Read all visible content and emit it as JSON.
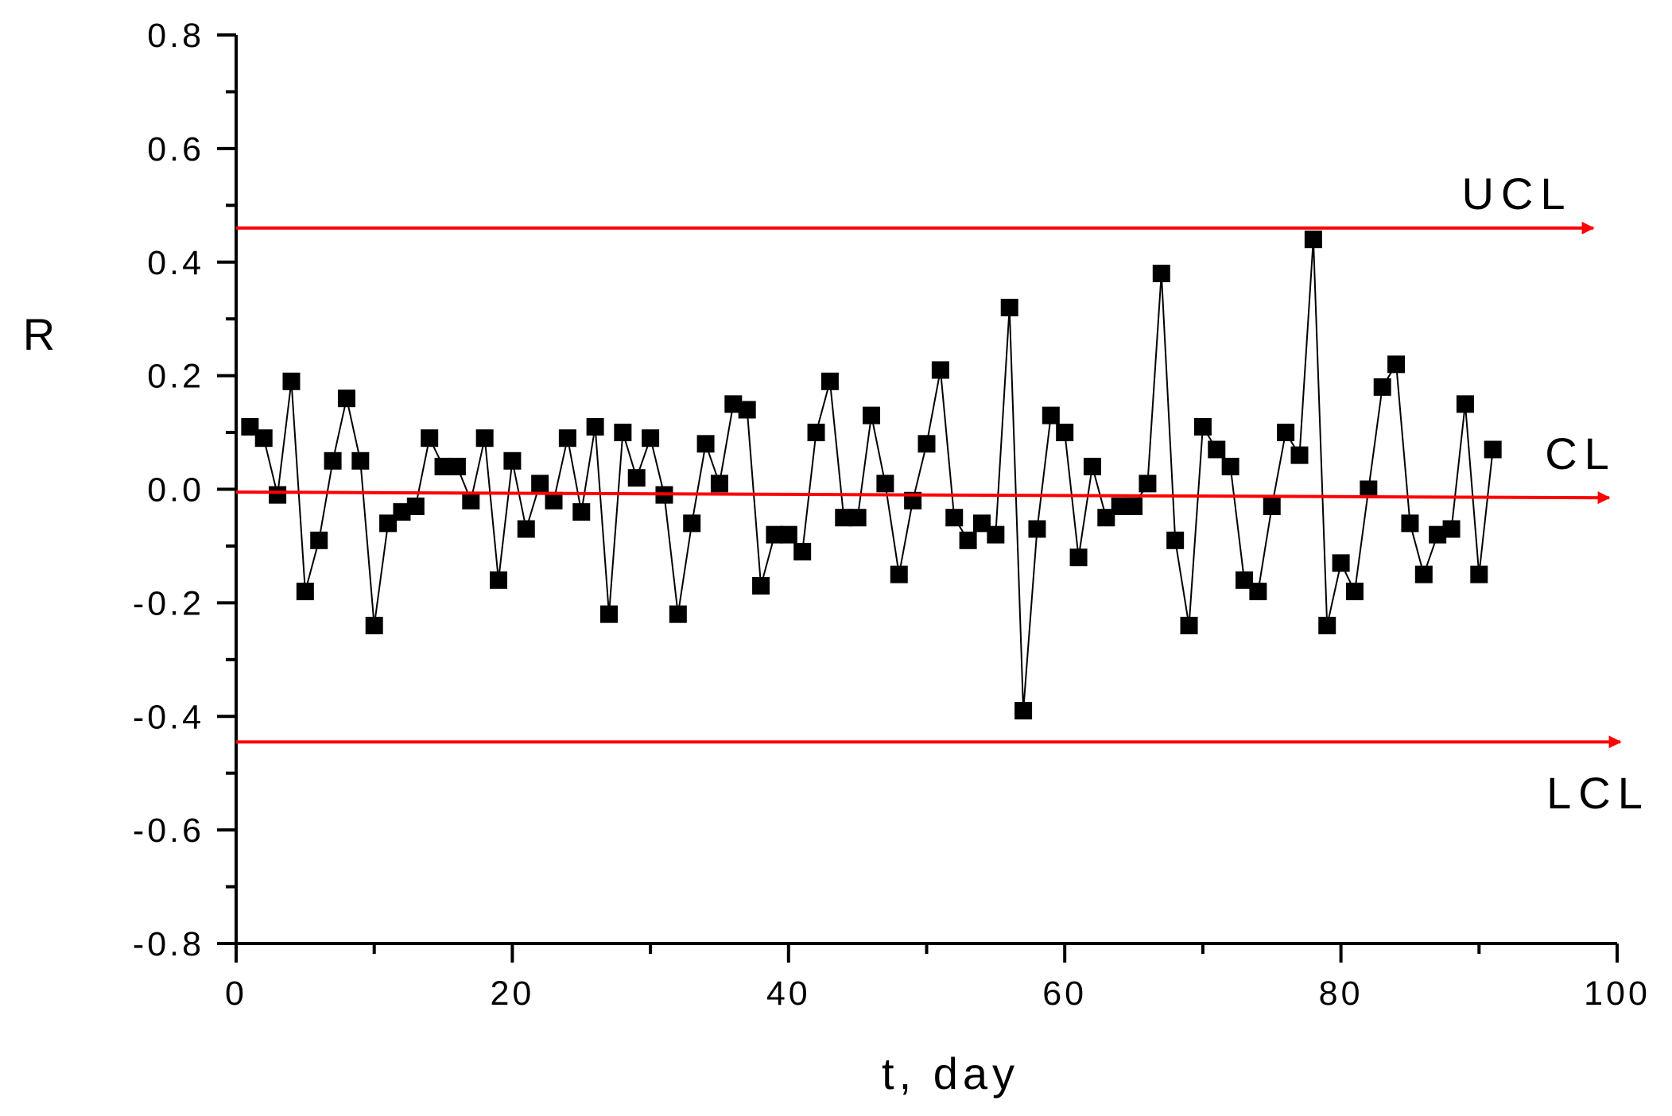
{
  "chart_data": {
    "type": "line",
    "xlabel": "t, day",
    "ylabel": "R",
    "xlim": [
      0,
      100
    ],
    "ylim": [
      -0.8,
      0.8
    ],
    "x_ticks": [
      "0",
      "20",
      "40",
      "60",
      "80",
      "100"
    ],
    "y_ticks": [
      "0.8",
      "0.6",
      "0.4",
      "0.2",
      "0.0",
      "-0.2",
      "-0.4",
      "-0.6",
      "-0.8"
    ],
    "grid": false,
    "series": [
      {
        "marker": "square",
        "color": "#000000",
        "x": [
          1,
          2,
          3,
          4,
          5,
          6,
          7,
          8,
          9,
          10,
          11,
          12,
          13,
          14,
          15,
          16,
          17,
          18,
          19,
          20,
          21,
          22,
          23,
          24,
          25,
          26,
          27,
          28,
          29,
          30,
          31,
          32,
          33,
          34,
          35,
          36,
          37,
          38,
          39,
          40,
          41,
          42,
          43,
          44,
          45,
          46,
          47,
          48,
          49,
          50,
          51,
          52,
          53,
          54,
          55,
          56,
          57,
          58,
          59,
          60,
          61,
          62,
          63,
          64,
          65,
          66,
          67,
          68,
          69,
          70,
          71,
          72,
          73,
          74,
          75,
          76,
          77,
          78,
          79,
          80,
          81,
          82,
          83,
          84,
          85,
          86,
          87,
          88,
          89,
          90,
          91
        ],
        "y": [
          0.11,
          0.09,
          -0.01,
          0.19,
          -0.18,
          -0.09,
          0.05,
          0.16,
          0.05,
          -0.24,
          -0.06,
          -0.04,
          -0.03,
          0.09,
          0.04,
          0.04,
          -0.02,
          0.09,
          -0.16,
          0.05,
          -0.07,
          0.01,
          -0.02,
          0.09,
          -0.04,
          0.11,
          -0.22,
          0.1,
          0.02,
          0.09,
          -0.01,
          -0.22,
          -0.06,
          0.08,
          0.01,
          0.15,
          0.14,
          -0.17,
          -0.08,
          -0.08,
          -0.11,
          0.1,
          0.19,
          -0.05,
          -0.05,
          0.13,
          0.01,
          -0.15,
          -0.02,
          0.08,
          0.21,
          -0.05,
          -0.09,
          -0.06,
          -0.08,
          0.32,
          -0.39,
          -0.07,
          0.13,
          0.1,
          -0.12,
          0.04,
          -0.05,
          -0.03,
          -0.03,
          0.01,
          0.38,
          -0.09,
          -0.24,
          0.11,
          0.07,
          0.04,
          -0.16,
          -0.18,
          -0.03,
          0.1,
          0.06,
          0.44,
          -0.24,
          -0.13,
          -0.18,
          0.0,
          0.18,
          0.22,
          -0.06,
          -0.15,
          -0.08,
          -0.07,
          0.15,
          -0.15,
          0.07
        ]
      }
    ],
    "control_lines": [
      {
        "name": "UCL",
        "label": "UCL",
        "y_start": 0.46,
        "y_end": 0.46,
        "color": "#ff0000"
      },
      {
        "name": "CL",
        "label": "CL",
        "y_start": -0.005,
        "y_end": -0.015,
        "color": "#ff0000"
      },
      {
        "name": "LCL",
        "label": "LCL",
        "y_start": -0.445,
        "y_end": -0.445,
        "color": "#ff0000"
      }
    ]
  }
}
